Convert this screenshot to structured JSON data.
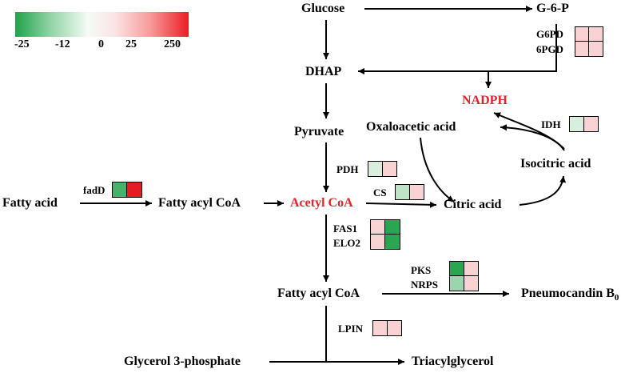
{
  "legend": {
    "ticks": [
      "-25",
      "-12",
      "0",
      "25",
      "250"
    ],
    "colors": {
      "low": "#1fa24a",
      "mid": "#ffffff",
      "high": "#ec1c24"
    }
  },
  "nodes": {
    "glucose": "Glucose",
    "g6p": "G-6-P",
    "dhap": "DHAP",
    "nadph": "NADPH",
    "pyruvate": "Pyruvate",
    "oxaloacetic": "Oxaloacetic acid",
    "isocitric": "Isocitric acid",
    "fatty_acid": "Fatty acid",
    "fatty_acyl_coa_1": "Fatty acyl CoA",
    "acetyl_coa": "Acetyl CoA",
    "citric": "Citric acid",
    "fatty_acyl_coa_2": "Fatty acyl CoA",
    "pneumocandin": "Pneumocandin B",
    "pneumocandin_sub": "0",
    "glycerol3p": "Glycerol 3-phosphate",
    "triacylglycerol": "Triacylglycerol"
  },
  "enzymes": {
    "g6pd": "G6PD",
    "pgd": "6PGD",
    "idh": "IDH",
    "pdh": "PDH",
    "fadd": "fadD",
    "cs": "CS",
    "fas1": "FAS1",
    "elo2": "ELO2",
    "pks": "PKS",
    "nrps": "NRPS",
    "lpin": "LPIN"
  },
  "heatmap_colors": {
    "g6pd_pgd": [
      [
        "#f9d3d3",
        "#f9d3d3"
      ],
      [
        "#f9d3d3",
        "#f9d3d3"
      ]
    ],
    "idh": [
      [
        "#d9eedd",
        "#f9d3d3"
      ]
    ],
    "pdh": [
      [
        "#d9eedd",
        "#f9d3d3"
      ]
    ],
    "fadd": [
      [
        "#49b26a",
        "#e41d23"
      ]
    ],
    "cs": [
      [
        "#bfe3c7",
        "#f9d3d3"
      ]
    ],
    "fas1_elo2": [
      [
        "#f9d3d3",
        "#2aa651"
      ],
      [
        "#f9d3d3",
        "#2aa651"
      ]
    ],
    "pks_nrps": [
      [
        "#2aa651",
        "#f9d3d3"
      ],
      [
        "#9cd5ab",
        "#f9d3d3"
      ]
    ],
    "lpin": [
      [
        "#f9d3d3",
        "#f9d3d3"
      ]
    ]
  }
}
